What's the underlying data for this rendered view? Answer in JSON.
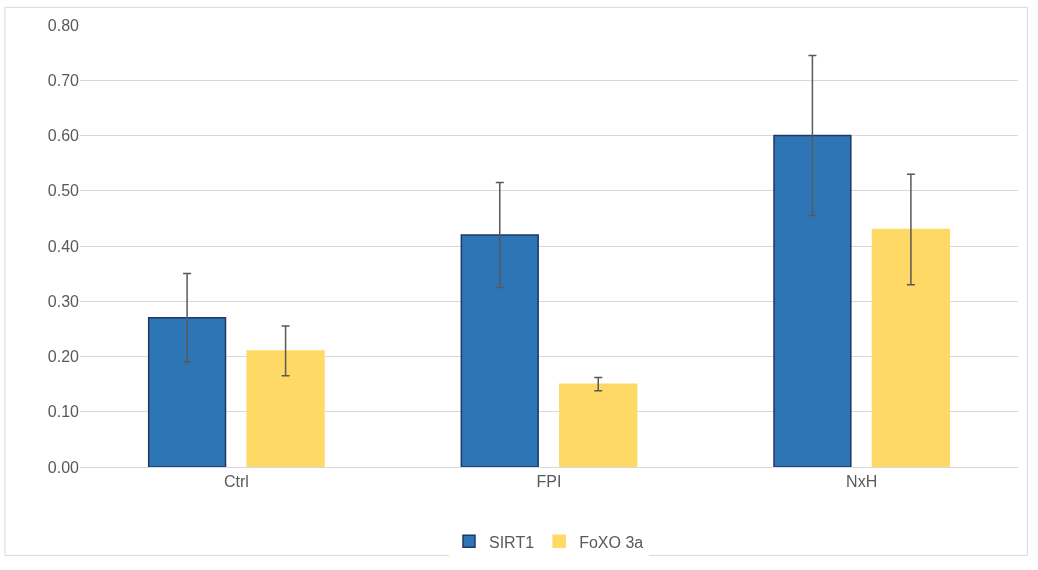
{
  "chart_data": {
    "type": "bar",
    "categories": [
      "Ctrl",
      "FPI",
      "NxH"
    ],
    "series": [
      {
        "name": "SIRT1",
        "color": "#2e75b6",
        "values": [
          0.27,
          0.42,
          0.6
        ],
        "errors": [
          0.08,
          0.095,
          0.145
        ]
      },
      {
        "name": "FoXO 3a",
        "color": "#ffd966",
        "values": [
          0.21,
          0.15,
          0.43
        ],
        "errors": [
          0.045,
          0.012,
          0.1
        ]
      }
    ],
    "ylim": [
      0,
      0.8
    ],
    "yticks": [
      {
        "value": 0,
        "label": "0.00"
      },
      {
        "value": 0.1,
        "label": "0.10"
      },
      {
        "value": 0.2,
        "label": "0.20"
      },
      {
        "value": 0.3,
        "label": "0.30"
      },
      {
        "value": 0.4,
        "label": "0.40"
      },
      {
        "value": 0.5,
        "label": "0.50"
      },
      {
        "value": 0.6,
        "label": "0.60"
      },
      {
        "value": 0.7,
        "label": "0.70"
      },
      {
        "value": 0.8,
        "label": "0.80"
      }
    ],
    "grid": "y",
    "legend": "bottom"
  }
}
